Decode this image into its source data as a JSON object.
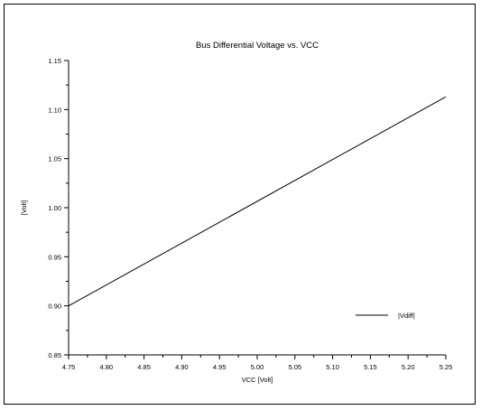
{
  "chart_data": {
    "type": "line",
    "title": "Bus Differential Voltage vs. VCC",
    "xlabel": "VCC [Volt]",
    "ylabel": "[Volt]",
    "xlim": [
      4.75,
      5.25
    ],
    "ylim": [
      0.85,
      1.15
    ],
    "xticks": [
      "4.75",
      "4.80",
      "4.85",
      "4.90",
      "4.95",
      "5.00",
      "5.05",
      "5.10",
      "5.15",
      "5.20",
      "5.25"
    ],
    "yticks": [
      "0.85",
      "0.90",
      "0.95",
      "1.00",
      "1.05",
      "1.10",
      "1.15"
    ],
    "grid": false,
    "legend": "right",
    "series": [
      {
        "name": "|Vdiff|",
        "color": "#000000",
        "x": [
          4.75,
          5.25
        ],
        "y": [
          0.9,
          1.113
        ]
      }
    ]
  }
}
